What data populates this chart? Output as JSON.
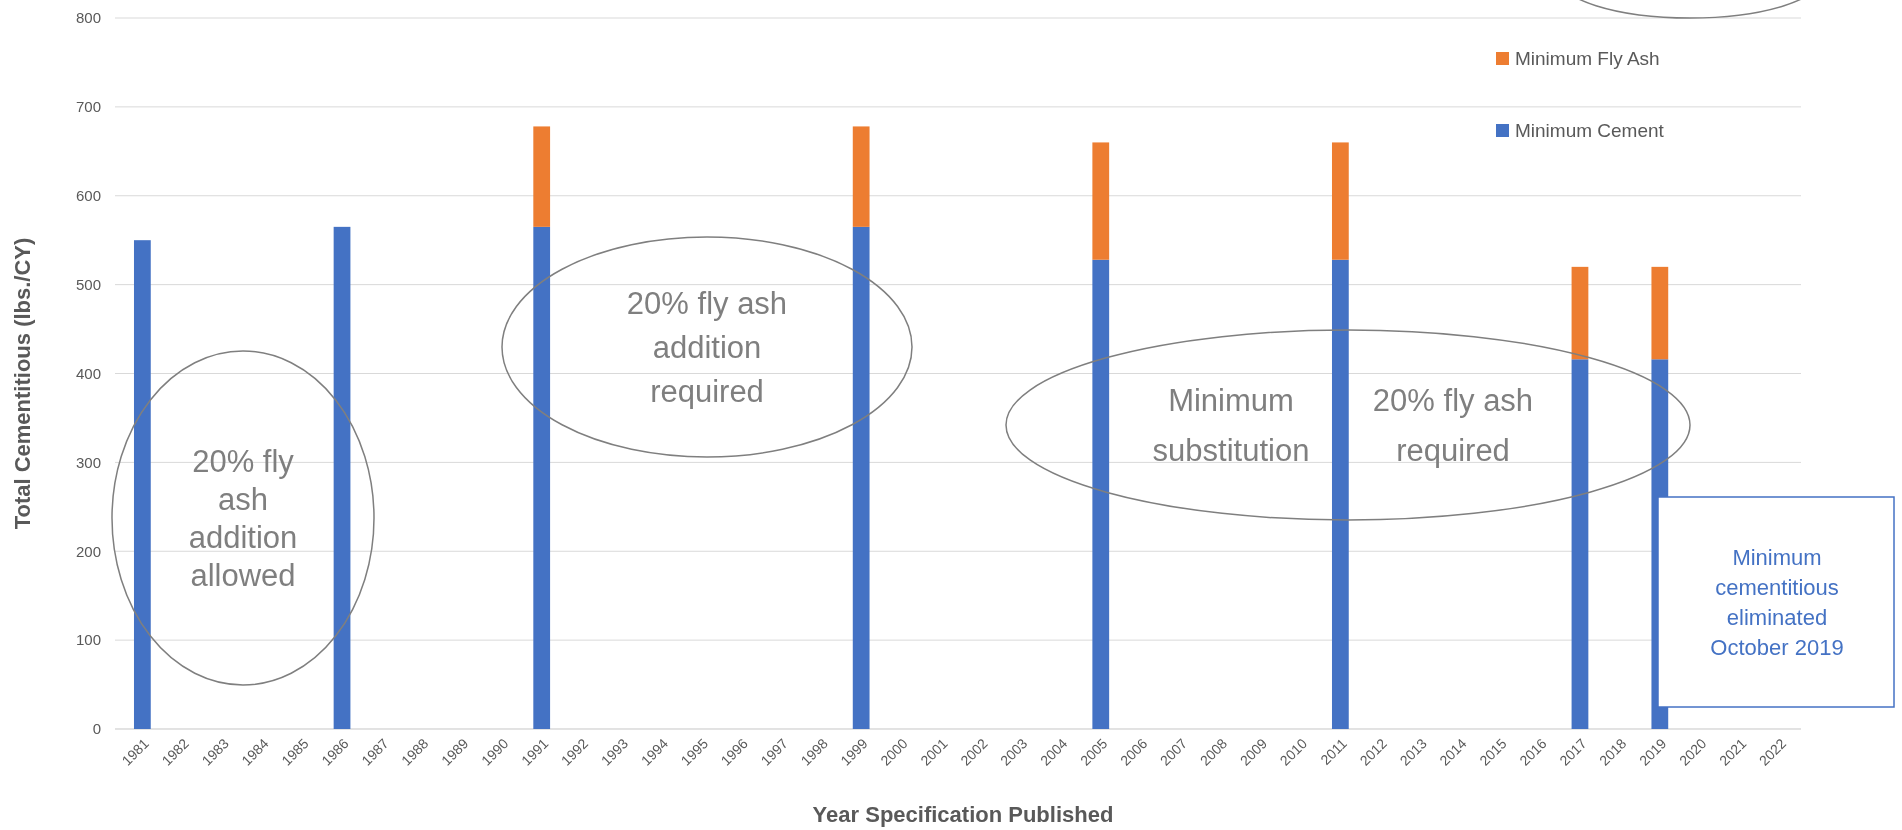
{
  "chart_data": {
    "type": "bar",
    "stacked": true,
    "xlabel": "Year Specification Published",
    "ylabel": "Total Cementitious (lbs./CY)",
    "categories": [
      "1981",
      "1982",
      "1983",
      "1984",
      "1985",
      "1986",
      "1987",
      "1988",
      "1989",
      "1990",
      "1991",
      "1992",
      "1993",
      "1994",
      "1995",
      "1996",
      "1997",
      "1998",
      "1999",
      "2000",
      "2001",
      "2002",
      "2003",
      "2004",
      "2005",
      "2006",
      "2007",
      "2008",
      "2009",
      "2010",
      "2011",
      "2012",
      "2013",
      "2014",
      "2015",
      "2016",
      "2017",
      "2018",
      "2019",
      "2020",
      "2021",
      "2022"
    ],
    "series": [
      {
        "name": "Minimum Cement",
        "color": "#4472c4",
        "values": [
          550,
          null,
          null,
          null,
          null,
          565,
          null,
          null,
          null,
          null,
          565,
          null,
          null,
          null,
          null,
          null,
          null,
          null,
          565,
          null,
          null,
          null,
          null,
          null,
          528,
          null,
          null,
          null,
          null,
          null,
          528,
          null,
          null,
          null,
          null,
          null,
          416,
          null,
          416,
          null,
          null,
          null
        ]
      },
      {
        "name": "Minimum Fly Ash",
        "color": "#ed7d31",
        "values": [
          null,
          null,
          null,
          null,
          null,
          null,
          null,
          null,
          null,
          null,
          113,
          null,
          null,
          null,
          null,
          null,
          null,
          null,
          113,
          null,
          null,
          null,
          null,
          null,
          132,
          null,
          null,
          null,
          null,
          null,
          132,
          null,
          null,
          null,
          null,
          null,
          104,
          null,
          104,
          null,
          null,
          null
        ]
      }
    ],
    "ylim": [
      0,
      800
    ],
    "yticks": [
      0,
      100,
      200,
      300,
      400,
      500,
      600,
      700,
      800
    ],
    "grid": "y",
    "legend": "top right",
    "annotations": [
      "20% fly ash addition allowed",
      "20% fly ash addition required",
      "Minimum substitution",
      "20% fly ash required",
      "Minimum cementitious eliminated October 2019"
    ]
  }
}
